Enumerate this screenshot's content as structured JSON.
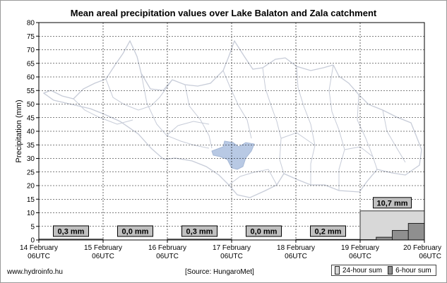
{
  "chart_data": {
    "type": "bar",
    "title": "Mean areal precipitation values over Lake Balaton and Zala catchment",
    "ylabel": "Precipitation (mm)",
    "xlabel": "",
    "ylim": [
      0,
      80
    ],
    "yticks": [
      0,
      5,
      10,
      15,
      20,
      25,
      30,
      35,
      40,
      45,
      50,
      55,
      60,
      65,
      70,
      75,
      80
    ],
    "grid": true,
    "x_ticks": [
      {
        "date": "14 February",
        "time": "06UTC"
      },
      {
        "date": "15 February",
        "time": "06UTC"
      },
      {
        "date": "16 February",
        "time": "06UTC"
      },
      {
        "date": "17 February",
        "time": "06UTC"
      },
      {
        "date": "18 February",
        "time": "06UTC"
      },
      {
        "date": "19 February",
        "time": "06UTC"
      },
      {
        "date": "20 February",
        "time": "06UTC"
      }
    ],
    "daily_24h": [
      0.3,
      0.0,
      0.3,
      0.0,
      0.2,
      10.7
    ],
    "daily_labels": [
      "0,3 mm",
      "0,0 mm",
      "0,3 mm",
      "0,0 mm",
      "0,2 mm",
      "10,7 mm"
    ],
    "sixhour_last_day": [
      0.1,
      1.0,
      3.5,
      6.1
    ],
    "series": [
      {
        "name": "24-hour sum",
        "color": "#d8d8d8"
      },
      {
        "name": "6-hour sum",
        "color": "#8f8f8f"
      }
    ],
    "legend_position": "bottom-right"
  },
  "footer": {
    "website": "www.hydroinfo.hu",
    "source": "[Source: HungaroMet]"
  },
  "legend": {
    "label_24h": "24-hour sum",
    "label_6h": "6-hour sum"
  }
}
